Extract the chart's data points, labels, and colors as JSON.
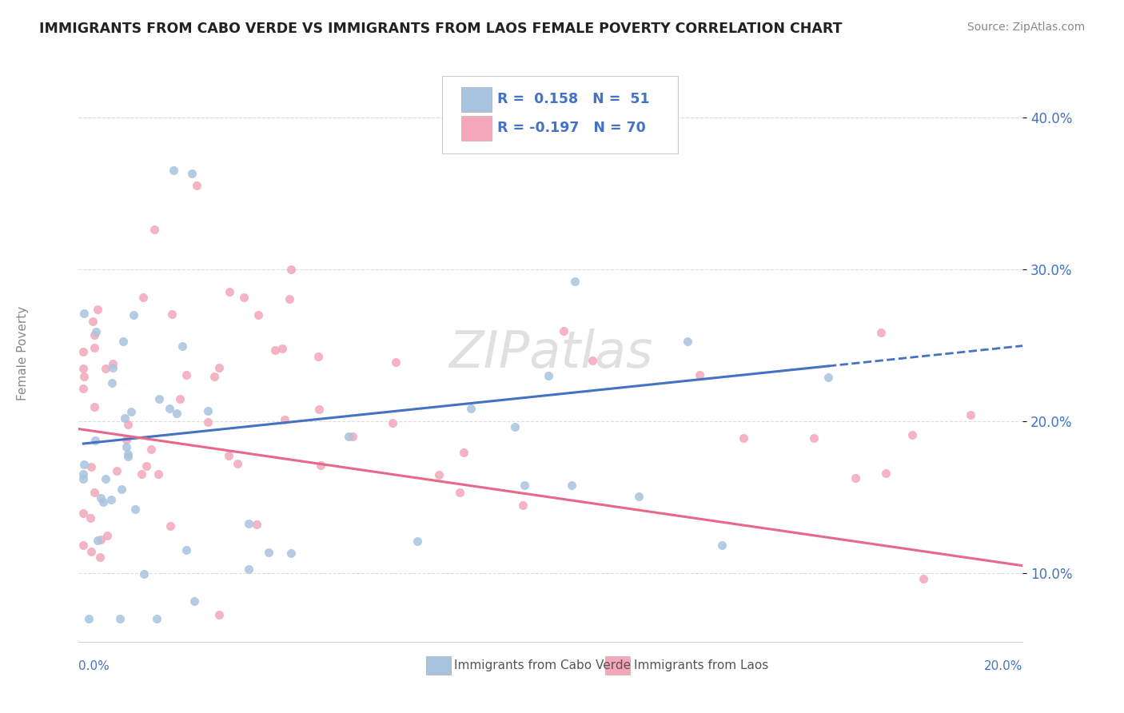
{
  "title": "IMMIGRANTS FROM CABO VERDE VS IMMIGRANTS FROM LAOS FEMALE POVERTY CORRELATION CHART",
  "source": "Source: ZipAtlas.com",
  "ylabel": "Female Poverty",
  "y_ticks": [
    0.1,
    0.2,
    0.3,
    0.4
  ],
  "y_tick_labels": [
    "10.0%",
    "20.0%",
    "30.0%",
    "40.0%"
  ],
  "xlim": [
    0.0,
    0.2
  ],
  "ylim": [
    0.055,
    0.435
  ],
  "cabo_verde_color": "#a8c4e0",
  "laos_color": "#f4a7b9",
  "cabo_verde_line_color": "#4472c4",
  "laos_line_color": "#e8688a",
  "cabo_verde_R": 0.158,
  "cabo_verde_N": 51,
  "laos_R": -0.197,
  "laos_N": 70,
  "legend_label_cabo": "Immigrants from Cabo Verde",
  "legend_label_laos": "Immigrants from Laos",
  "watermark": "ZIPatlas"
}
